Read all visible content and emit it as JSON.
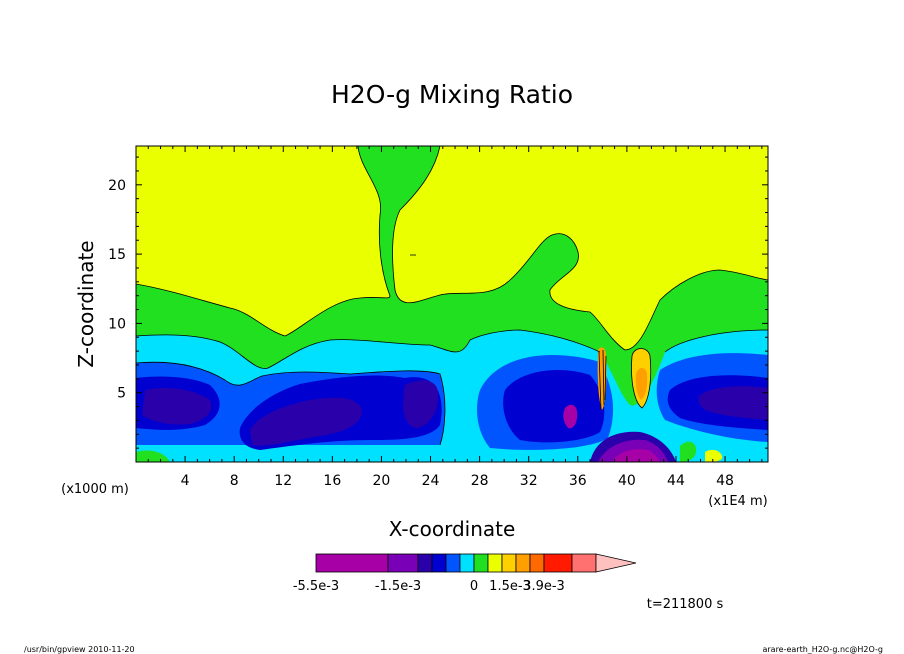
{
  "chart_data": {
    "type": "heatmap",
    "title": "H2O-g Mixing Ratio",
    "xlabel": "X-coordinate",
    "ylabel": "Z-coordinate",
    "x_unit_label": "(x1000 m)",
    "x_tick_labels": [
      "4",
      "8",
      "12",
      "16",
      "20",
      "24",
      "28",
      "32",
      "36",
      "40",
      "44",
      "48"
    ],
    "x_ticks": [
      4,
      8,
      12,
      16,
      20,
      24,
      28,
      32,
      36,
      40,
      44,
      48
    ],
    "xlim": [
      0,
      51.5
    ],
    "ylim": [
      0,
      22.8
    ],
    "y_tick_labels": [
      "5",
      "10",
      "15",
      "20"
    ],
    "y_ticks": [
      5,
      10,
      15,
      20
    ],
    "scale_factor_label": "(x1E4 m)",
    "colorbar": {
      "colors": [
        "#a600a6",
        "#7a00b8",
        "#2a00aa",
        "#0000d0",
        "#0055ff",
        "#00e0ff",
        "#20e020",
        "#eaff00",
        "#ffd000",
        "#ffa000",
        "#ff6a00",
        "#ff1a00",
        "#ff7070",
        "#ffc0c0"
      ],
      "labels": [
        "-5.5e-3",
        "-1.5e-3",
        "0",
        "1.5e-3",
        "3.9e-3"
      ]
    },
    "time_label": "t=211800 s",
    "footer_left": "/usr/bin/gpview  2010-11-20",
    "footer_right": "arare-earth_H2O-g.nc@H2O-g"
  }
}
